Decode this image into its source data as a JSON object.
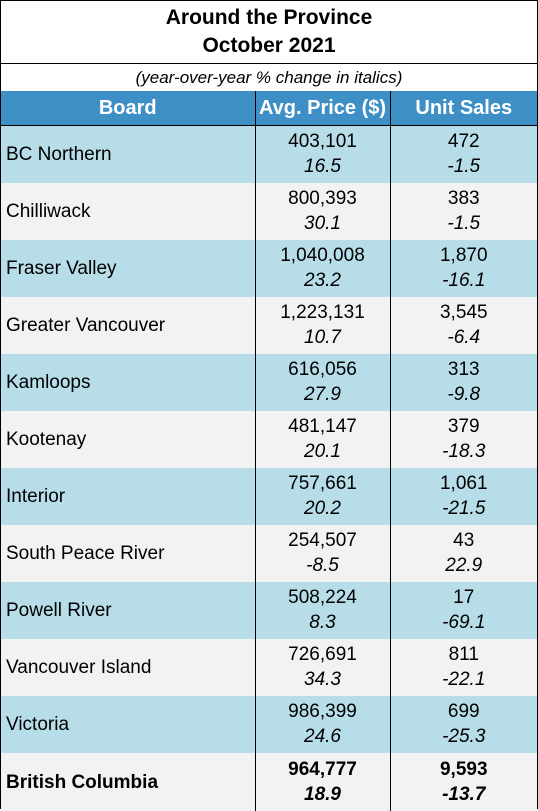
{
  "title": {
    "line1": "Around the Province",
    "line2": "October  2021"
  },
  "subtitle": "(year-over-year % change in italics)",
  "columns": [
    "Board",
    "Avg. Price ($)",
    "Unit Sales"
  ],
  "rows": [
    {
      "board": "BC Northern",
      "price": "403,101",
      "price_pct": "16.5",
      "sales": "472",
      "sales_pct": "-1.5"
    },
    {
      "board": "Chilliwack",
      "price": "800,393",
      "price_pct": "30.1",
      "sales": "383",
      "sales_pct": "-1.5"
    },
    {
      "board": "Fraser Valley",
      "price": "1,040,008",
      "price_pct": "23.2",
      "sales": "1,870",
      "sales_pct": "-16.1"
    },
    {
      "board": "Greater Vancouver",
      "price": "1,223,131",
      "price_pct": "10.7",
      "sales": "3,545",
      "sales_pct": "-6.4"
    },
    {
      "board": "Kamloops",
      "price": "616,056",
      "price_pct": "27.9",
      "sales": "313",
      "sales_pct": "-9.8"
    },
    {
      "board": "Kootenay",
      "price": "481,147",
      "price_pct": "20.1",
      "sales": "379",
      "sales_pct": "-18.3"
    },
    {
      "board": "Interior",
      "price": "757,661",
      "price_pct": "20.2",
      "sales": "1,061",
      "sales_pct": "-21.5"
    },
    {
      "board": "South Peace River",
      "price": "254,507",
      "price_pct": "-8.5",
      "sales": "43",
      "sales_pct": "22.9"
    },
    {
      "board": "Powell River",
      "price": "508,224",
      "price_pct": "8.3",
      "sales": "17",
      "sales_pct": "-69.1"
    },
    {
      "board": "Vancouver Island",
      "price": "726,691",
      "price_pct": "34.3",
      "sales": "811",
      "sales_pct": "-22.1"
    },
    {
      "board": "Victoria",
      "price": "986,399",
      "price_pct": "24.6",
      "sales": "699",
      "sales_pct": "-25.3"
    },
    {
      "board": "British Columbia",
      "price": "964,777",
      "price_pct": "18.9",
      "sales": "9,593",
      "sales_pct": "-13.7"
    }
  ],
  "colors": {
    "header": "#3f8fc7",
    "band": "#b7dde8",
    "alt": "#f2f2f2"
  }
}
